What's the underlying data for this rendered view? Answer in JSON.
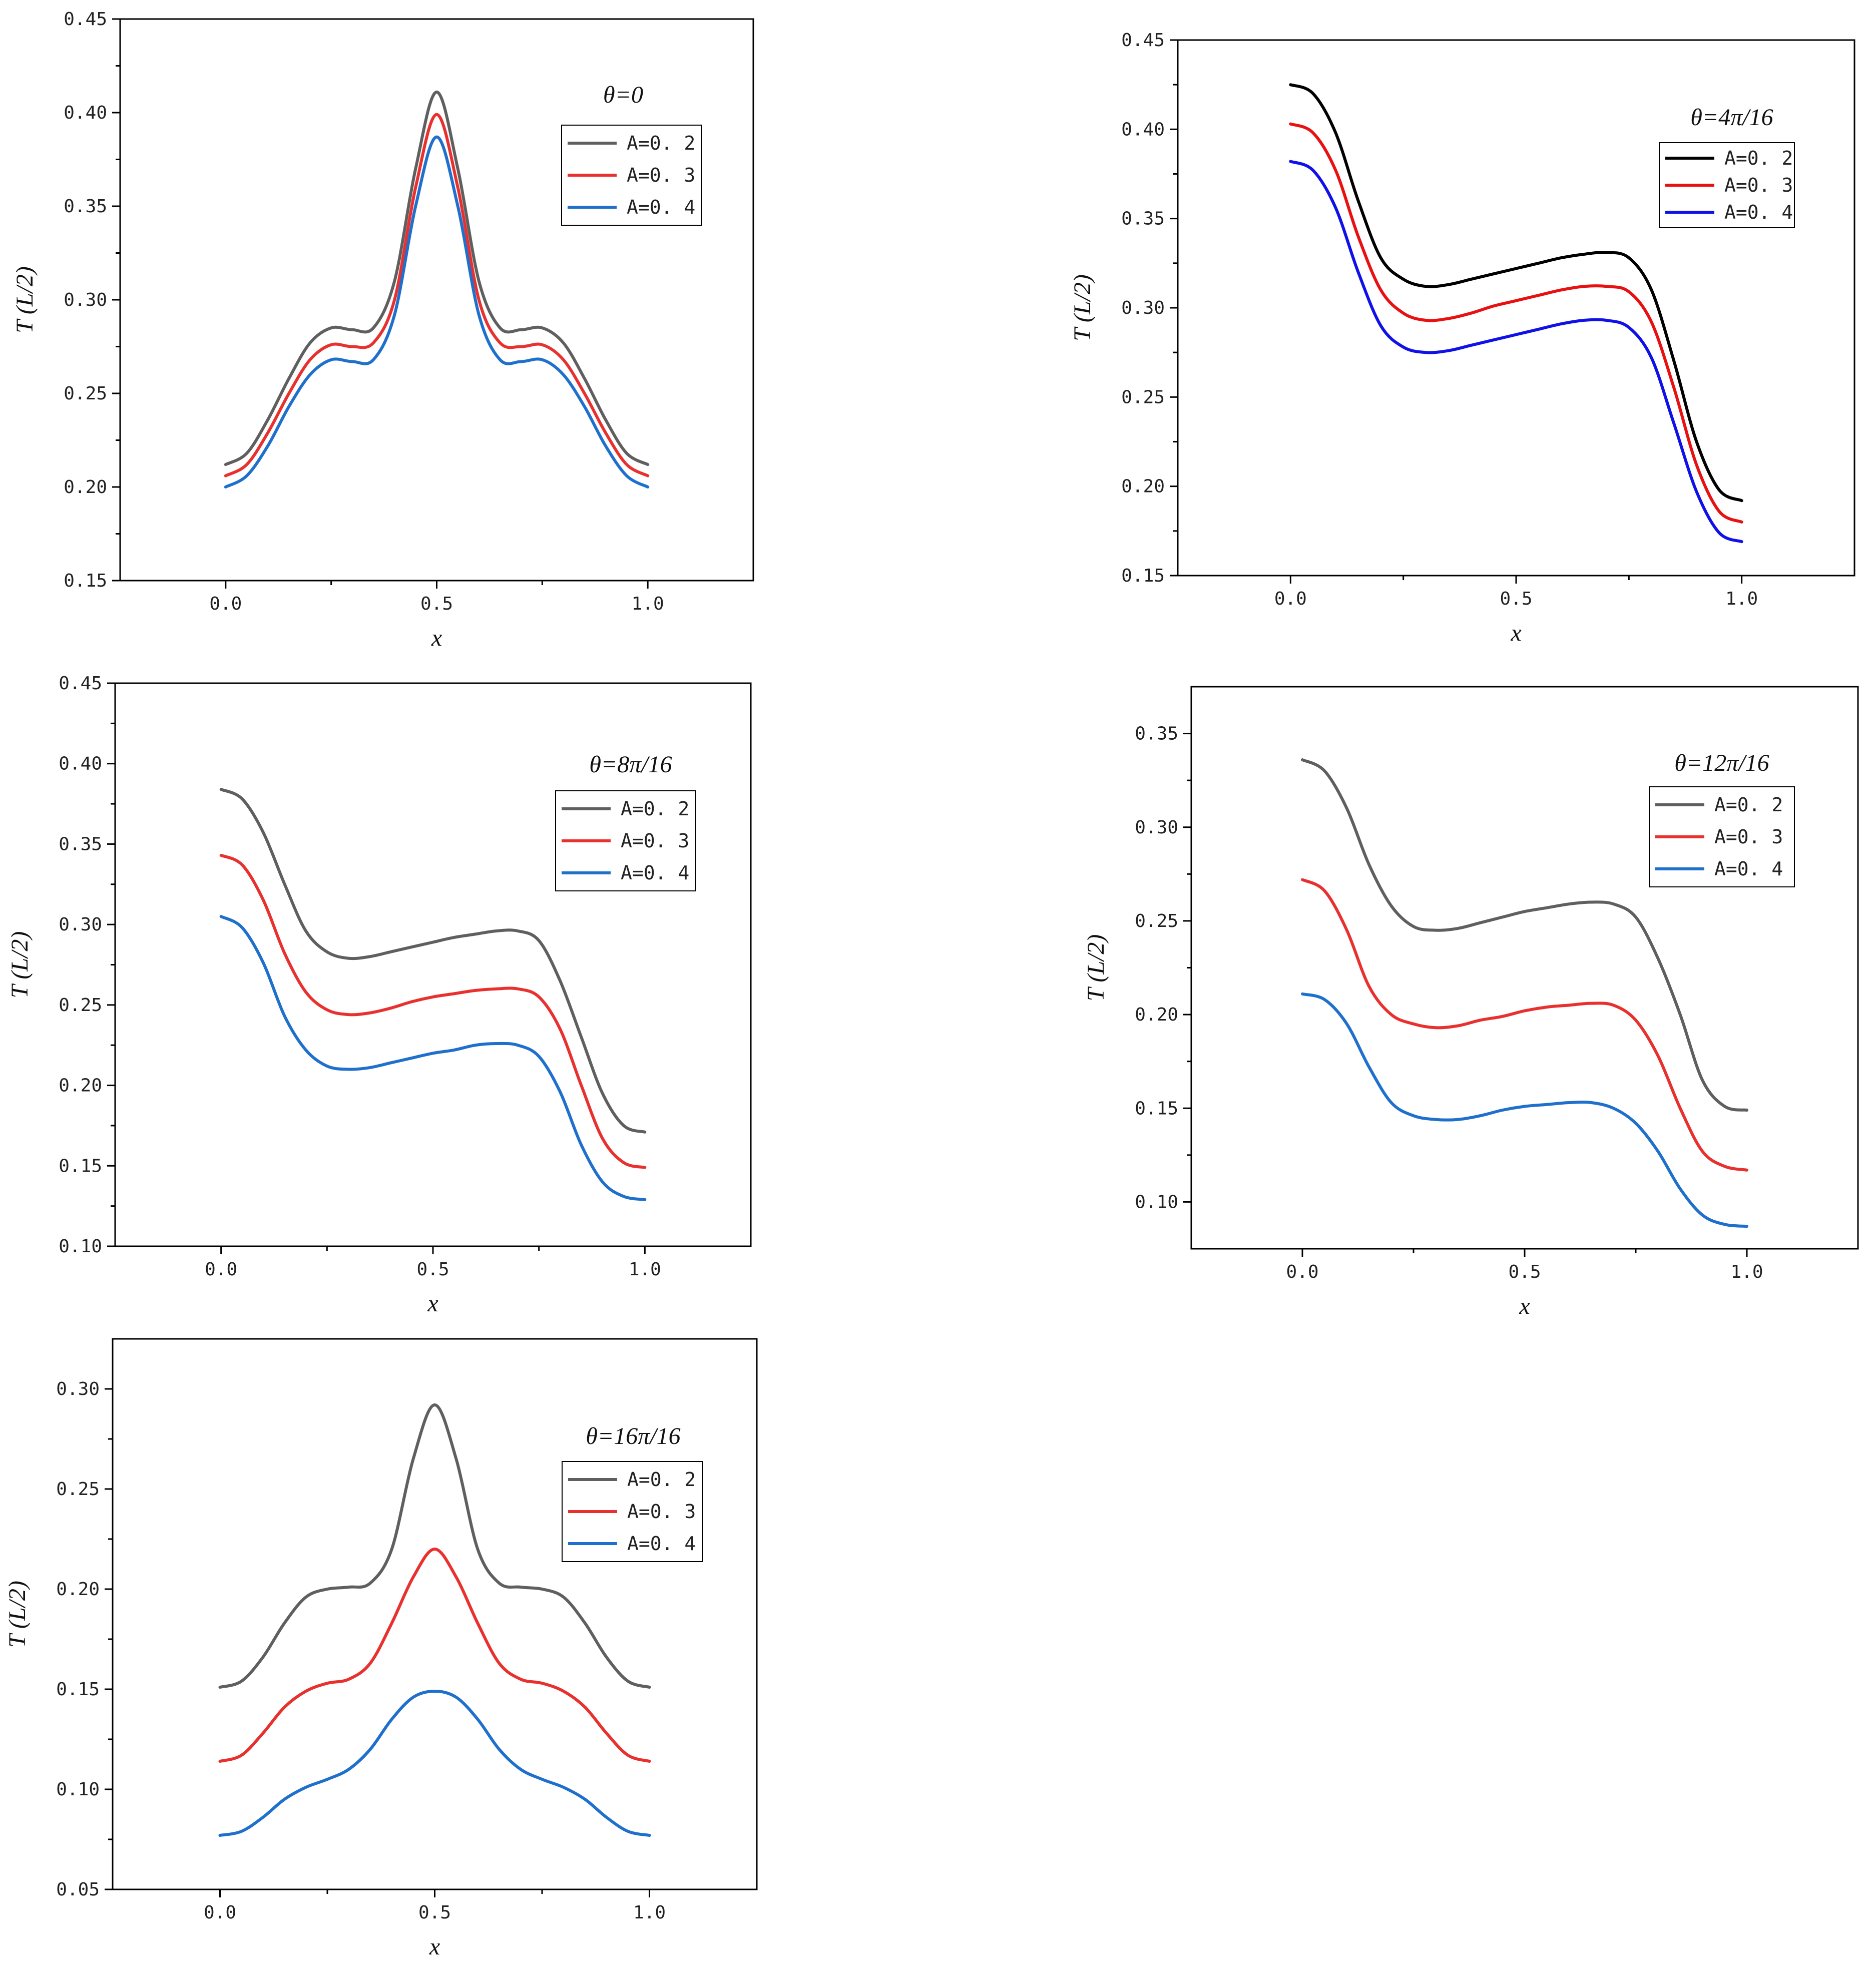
{
  "figure": {
    "background": "#ffffff"
  },
  "chart_data": [
    {
      "type": "line",
      "title": "θ=0",
      "xlabel": "x",
      "ylabel": "T (L/2)",
      "xlim": [
        -0.25,
        1.25
      ],
      "ylim": [
        0.15,
        0.45
      ],
      "xticks": [
        "0.0",
        "0.5",
        "1.0"
      ],
      "yticks": [
        "0.15",
        "0.20",
        "0.25",
        "0.30",
        "0.35",
        "0.40",
        "0.45"
      ],
      "x": [
        0,
        0.05,
        0.1,
        0.15,
        0.2,
        0.25,
        0.3,
        0.35,
        0.4,
        0.45,
        0.5,
        0.55,
        0.6,
        0.65,
        0.7,
        0.75,
        0.8,
        0.85,
        0.9,
        0.95,
        1
      ],
      "series": [
        {
          "name": "A=0.2",
          "color": "#5f5f5f",
          "values": [
            0.212,
            0.218,
            0.236,
            0.258,
            0.277,
            0.285,
            0.284,
            0.285,
            0.31,
            0.37,
            0.411,
            0.37,
            0.31,
            0.285,
            0.284,
            0.285,
            0.277,
            0.258,
            0.236,
            0.218,
            0.212
          ]
        },
        {
          "name": "A=0.3",
          "color": "#e8312f",
          "values": [
            0.206,
            0.212,
            0.229,
            0.25,
            0.268,
            0.276,
            0.275,
            0.277,
            0.3,
            0.36,
            0.399,
            0.36,
            0.3,
            0.277,
            0.275,
            0.276,
            0.268,
            0.25,
            0.229,
            0.212,
            0.206
          ]
        },
        {
          "name": "A=0.4",
          "color": "#1f6fcc",
          "values": [
            0.2,
            0.206,
            0.222,
            0.243,
            0.26,
            0.268,
            0.267,
            0.268,
            0.292,
            0.35,
            0.387,
            0.35,
            0.292,
            0.268,
            0.267,
            0.268,
            0.26,
            0.243,
            0.222,
            0.206,
            0.2
          ]
        }
      ]
    },
    {
      "type": "line",
      "title": "θ=4π/16",
      "xlabel": "x",
      "ylabel": "T (L/2)",
      "xlim": [
        -0.25,
        1.25
      ],
      "ylim": [
        0.15,
        0.45
      ],
      "xticks": [
        "0.0",
        "0.5",
        "1.0"
      ],
      "yticks": [
        "0.15",
        "0.20",
        "0.25",
        "0.30",
        "0.35",
        "0.40",
        "0.45"
      ],
      "x": [
        0,
        0.05,
        0.1,
        0.15,
        0.2,
        0.25,
        0.3,
        0.35,
        0.4,
        0.45,
        0.5,
        0.55,
        0.6,
        0.65,
        0.7,
        0.75,
        0.8,
        0.85,
        0.9,
        0.95,
        1
      ],
      "series": [
        {
          "name": "A=0.2",
          "color": "#000000",
          "values": [
            0.425,
            0.42,
            0.398,
            0.36,
            0.328,
            0.316,
            0.312,
            0.313,
            0.316,
            0.319,
            0.322,
            0.325,
            0.328,
            0.33,
            0.331,
            0.328,
            0.31,
            0.27,
            0.225,
            0.198,
            0.192
          ]
        },
        {
          "name": "A=0.3",
          "color": "#e81010",
          "values": [
            0.403,
            0.398,
            0.377,
            0.34,
            0.31,
            0.297,
            0.293,
            0.294,
            0.297,
            0.301,
            0.304,
            0.307,
            0.31,
            0.312,
            0.312,
            0.309,
            0.292,
            0.255,
            0.212,
            0.186,
            0.18
          ]
        },
        {
          "name": "A=0.4",
          "color": "#1010e8",
          "values": [
            0.382,
            0.377,
            0.356,
            0.32,
            0.29,
            0.278,
            0.275,
            0.276,
            0.279,
            0.282,
            0.285,
            0.288,
            0.291,
            0.293,
            0.293,
            0.289,
            0.272,
            0.235,
            0.197,
            0.174,
            0.169
          ]
        }
      ]
    },
    {
      "type": "line",
      "title": "θ=8π/16",
      "xlabel": "x",
      "ylabel": "T (L/2)",
      "xlim": [
        -0.25,
        1.25
      ],
      "ylim": [
        0.1,
        0.45
      ],
      "xticks": [
        "0.0",
        "0.5",
        "1.0"
      ],
      "yticks": [
        "0.10",
        "0.15",
        "0.20",
        "0.25",
        "0.30",
        "0.35",
        "0.40",
        "0.45"
      ],
      "x": [
        0,
        0.05,
        0.1,
        0.15,
        0.2,
        0.25,
        0.3,
        0.35,
        0.4,
        0.45,
        0.5,
        0.55,
        0.6,
        0.65,
        0.7,
        0.75,
        0.8,
        0.85,
        0.9,
        0.95,
        1
      ],
      "series": [
        {
          "name": "A=0.2",
          "color": "#5f5f5f",
          "values": [
            0.384,
            0.378,
            0.357,
            0.325,
            0.296,
            0.283,
            0.279,
            0.28,
            0.283,
            0.286,
            0.289,
            0.292,
            0.294,
            0.296,
            0.296,
            0.29,
            0.265,
            0.23,
            0.195,
            0.175,
            0.171
          ]
        },
        {
          "name": "A=0.3",
          "color": "#e8312f",
          "values": [
            0.343,
            0.337,
            0.315,
            0.282,
            0.258,
            0.247,
            0.244,
            0.245,
            0.248,
            0.252,
            0.255,
            0.257,
            0.259,
            0.26,
            0.26,
            0.255,
            0.235,
            0.2,
            0.167,
            0.152,
            0.149
          ]
        },
        {
          "name": "A=0.4",
          "color": "#1f6fcc",
          "values": [
            0.305,
            0.298,
            0.276,
            0.243,
            0.222,
            0.212,
            0.21,
            0.211,
            0.214,
            0.217,
            0.22,
            0.222,
            0.225,
            0.226,
            0.225,
            0.218,
            0.196,
            0.163,
            0.14,
            0.131,
            0.129
          ]
        }
      ]
    },
    {
      "type": "line",
      "title": "θ=12π/16",
      "xlabel": "x",
      "ylabel": "T (L/2)",
      "xlim": [
        -0.25,
        1.25
      ],
      "ylim": [
        0.075,
        0.375
      ],
      "xticks": [
        "0.0",
        "0.5",
        "1.0"
      ],
      "yticks": [
        "0.10",
        "0.15",
        "0.20",
        "0.25",
        "0.30",
        "0.35"
      ],
      "x": [
        0,
        0.05,
        0.1,
        0.15,
        0.2,
        0.25,
        0.3,
        0.35,
        0.4,
        0.45,
        0.5,
        0.55,
        0.6,
        0.65,
        0.7,
        0.75,
        0.8,
        0.85,
        0.9,
        0.95,
        1
      ],
      "series": [
        {
          "name": "A=0.2",
          "color": "#5f5f5f",
          "values": [
            0.336,
            0.33,
            0.31,
            0.28,
            0.258,
            0.247,
            0.245,
            0.246,
            0.249,
            0.252,
            0.255,
            0.257,
            0.259,
            0.26,
            0.259,
            0.252,
            0.23,
            0.2,
            0.165,
            0.151,
            0.149
          ]
        },
        {
          "name": "A=0.3",
          "color": "#e8312f",
          "values": [
            0.272,
            0.266,
            0.245,
            0.215,
            0.2,
            0.195,
            0.193,
            0.194,
            0.197,
            0.199,
            0.202,
            0.204,
            0.205,
            0.206,
            0.205,
            0.197,
            0.178,
            0.15,
            0.127,
            0.119,
            0.117
          ]
        },
        {
          "name": "A=0.4",
          "color": "#1f6fcc",
          "values": [
            0.211,
            0.208,
            0.195,
            0.172,
            0.153,
            0.146,
            0.144,
            0.144,
            0.146,
            0.149,
            0.151,
            0.152,
            0.153,
            0.153,
            0.15,
            0.142,
            0.127,
            0.107,
            0.093,
            0.088,
            0.087
          ]
        }
      ]
    },
    {
      "type": "line",
      "title": "θ=16π/16",
      "xlabel": "x",
      "ylabel": "T (L/2)",
      "xlim": [
        -0.25,
        1.25
      ],
      "ylim": [
        0.05,
        0.325
      ],
      "xticks": [
        "0.0",
        "0.5",
        "1.0"
      ],
      "yticks": [
        "0.05",
        "0.10",
        "0.15",
        "0.20",
        "0.25",
        "0.30"
      ],
      "x": [
        0,
        0.05,
        0.1,
        0.15,
        0.2,
        0.25,
        0.3,
        0.35,
        0.4,
        0.45,
        0.5,
        0.55,
        0.6,
        0.65,
        0.7,
        0.75,
        0.8,
        0.85,
        0.9,
        0.95,
        1
      ],
      "series": [
        {
          "name": "A=0.2",
          "color": "#5f5f5f",
          "values": [
            0.151,
            0.154,
            0.166,
            0.183,
            0.196,
            0.2,
            0.201,
            0.203,
            0.22,
            0.265,
            0.292,
            0.265,
            0.22,
            0.203,
            0.201,
            0.2,
            0.196,
            0.183,
            0.166,
            0.154,
            0.151
          ]
        },
        {
          "name": "A=0.3",
          "color": "#e8312f",
          "values": [
            0.114,
            0.117,
            0.128,
            0.141,
            0.149,
            0.153,
            0.155,
            0.163,
            0.183,
            0.206,
            0.22,
            0.206,
            0.183,
            0.163,
            0.155,
            0.153,
            0.149,
            0.141,
            0.128,
            0.117,
            0.114
          ]
        },
        {
          "name": "A=0.4",
          "color": "#1f6fcc",
          "values": [
            0.077,
            0.079,
            0.086,
            0.095,
            0.101,
            0.105,
            0.11,
            0.12,
            0.135,
            0.146,
            0.149,
            0.146,
            0.135,
            0.12,
            0.11,
            0.105,
            0.101,
            0.095,
            0.086,
            0.079,
            0.077
          ]
        }
      ]
    }
  ]
}
